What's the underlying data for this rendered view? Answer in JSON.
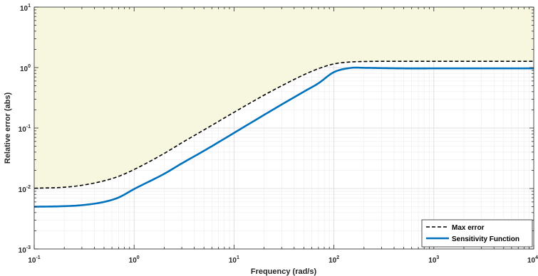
{
  "chart_data": {
    "type": "line",
    "xlabel": "Frequency (rad/s)",
    "ylabel": "Relative error (abs)",
    "xscale": "log",
    "yscale": "log",
    "xlim": [
      0.1,
      10000
    ],
    "ylim": [
      0.001,
      10
    ],
    "grid": true,
    "x_ticks": [
      {
        "base": "10",
        "exp": "-1",
        "value": 0.1
      },
      {
        "base": "10",
        "exp": "0",
        "value": 1
      },
      {
        "base": "10",
        "exp": "1",
        "value": 10
      },
      {
        "base": "10",
        "exp": "2",
        "value": 100
      },
      {
        "base": "10",
        "exp": "3",
        "value": 1000
      },
      {
        "base": "10",
        "exp": "4",
        "value": 10000
      }
    ],
    "y_ticks": [
      {
        "base": "10",
        "exp": "-3",
        "value": 0.001
      },
      {
        "base": "10",
        "exp": "-2",
        "value": 0.01
      },
      {
        "base": "10",
        "exp": "-1",
        "value": 0.1
      },
      {
        "base": "10",
        "exp": "0",
        "value": 1
      },
      {
        "base": "10",
        "exp": "1",
        "value": 10
      }
    ],
    "shaded_region": {
      "description": "area above Max error",
      "color": "#f7f7df"
    },
    "legend_position": "bottom-right",
    "series": [
      {
        "name": "Max error",
        "style": "dashed",
        "color": "#000000",
        "x": [
          0.1,
          0.2,
          0.3,
          0.5,
          0.7,
          1,
          2,
          3,
          5,
          10,
          20,
          30,
          50,
          70,
          100,
          150,
          200,
          300,
          500,
          1000,
          3000,
          10000
        ],
        "y": [
          0.0101,
          0.0105,
          0.0113,
          0.0134,
          0.0159,
          0.0206,
          0.038,
          0.057,
          0.093,
          0.182,
          0.35,
          0.5,
          0.76,
          0.96,
          1.15,
          1.24,
          1.26,
          1.27,
          1.27,
          1.27,
          1.27,
          1.27
        ]
      },
      {
        "name": "Sensitivity Function",
        "style": "solid",
        "color": "#0072bd",
        "x": [
          0.1,
          0.2,
          0.3,
          0.5,
          0.7,
          1,
          2,
          3,
          5,
          10,
          20,
          30,
          50,
          70,
          100,
          150,
          200,
          300,
          500,
          1000,
          3000,
          10000
        ],
        "y": [
          0.005,
          0.0051,
          0.0053,
          0.006,
          0.0071,
          0.0098,
          0.0175,
          0.026,
          0.042,
          0.083,
          0.165,
          0.245,
          0.4,
          0.55,
          0.84,
          0.99,
          0.99,
          0.98,
          0.97,
          0.97,
          0.97,
          0.97
        ]
      }
    ]
  }
}
